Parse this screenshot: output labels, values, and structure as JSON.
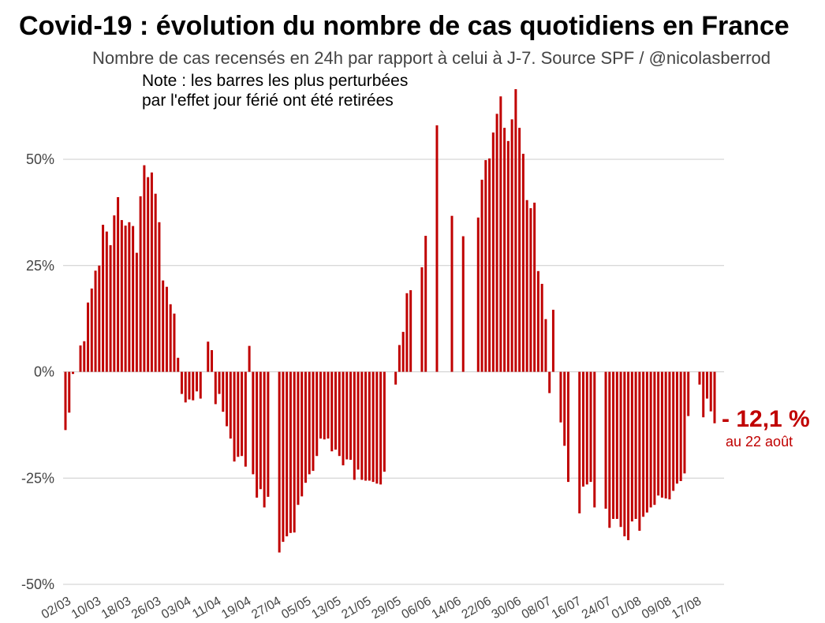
{
  "chart_data": {
    "type": "bar",
    "title": "Covid-19 : évolution du nombre de cas quotidiens en France",
    "subtitle": "Nombre de cas recensés en 24h par rapport à celui à J-7. Source SPF / @nicolasberrod",
    "note": [
      "Note : les barres les plus perturbées",
      "par l'effet jour férié ont été retirées"
    ],
    "ylim": [
      -50,
      70
    ],
    "grid": true,
    "y_ticks": [
      {
        "value": 50,
        "label": "50%"
      },
      {
        "value": 25,
        "label": "25%"
      },
      {
        "value": 0,
        "label": "0%"
      },
      {
        "value": -25,
        "label": "-25%"
      },
      {
        "value": -50,
        "label": "-50%"
      }
    ],
    "x_ticks": [
      {
        "day": 0,
        "label": "02/03"
      },
      {
        "day": 8,
        "label": "10/03"
      },
      {
        "day": 16,
        "label": "18/03"
      },
      {
        "day": 24,
        "label": "26/03"
      },
      {
        "day": 32,
        "label": "03/04"
      },
      {
        "day": 40,
        "label": "11/04"
      },
      {
        "day": 48,
        "label": "19/04"
      },
      {
        "day": 56,
        "label": "27/04"
      },
      {
        "day": 64,
        "label": "05/05"
      },
      {
        "day": 72,
        "label": "13/05"
      },
      {
        "day": 80,
        "label": "21/05"
      },
      {
        "day": 88,
        "label": "29/05"
      },
      {
        "day": 96,
        "label": "06/06"
      },
      {
        "day": 104,
        "label": "14/06"
      },
      {
        "day": 112,
        "label": "22/06"
      },
      {
        "day": 120,
        "label": "30/06"
      },
      {
        "day": 128,
        "label": "08/07"
      },
      {
        "day": 136,
        "label": "16/07"
      },
      {
        "day": 144,
        "label": "24/07"
      },
      {
        "day": 152,
        "label": "01/08"
      },
      {
        "day": 160,
        "label": "09/08"
      },
      {
        "day": 168,
        "label": "17/08"
      }
    ],
    "values": [
      -13.7,
      -9.6,
      -0.5,
      null,
      6.2,
      7.2,
      16.3,
      19.6,
      23.8,
      25.0,
      34.6,
      33.0,
      29.8,
      36.8,
      41.1,
      35.7,
      34.4,
      35.2,
      34.3,
      28.0,
      41.3,
      48.6,
      45.8,
      46.9,
      41.9,
      35.2,
      21.5,
      20.0,
      15.9,
      13.7,
      3.3,
      -5.2,
      -7.2,
      -6.5,
      -6.7,
      -4.6,
      -6.3,
      null,
      7.1,
      5.1,
      -7.6,
      -5.2,
      -9.4,
      -12.8,
      -15.7,
      -21.1,
      -20.0,
      -19.8,
      -22.3,
      6.1,
      -24.1,
      -29.6,
      -27.6,
      -31.9,
      -29.4,
      null,
      null,
      -42.5,
      -40.0,
      -38.7,
      -37.9,
      -37.8,
      -31.3,
      -29.3,
      -26.1,
      -24.1,
      -23.3,
      -19.8,
      -15.7,
      -15.9,
      -15.7,
      -18.7,
      -18.3,
      -19.8,
      -22.0,
      -20.6,
      -20.7,
      -25.4,
      -23.0,
      -25.4,
      -25.6,
      -25.6,
      -25.9,
      -26.3,
      -26.5,
      -23.5,
      null,
      null,
      -3.0,
      6.3,
      9.4,
      18.5,
      19.2,
      null,
      null,
      24.6,
      32.0,
      null,
      null,
      58.0,
      null,
      null,
      null,
      36.7,
      null,
      null,
      31.9,
      null,
      null,
      null,
      36.3,
      45.2,
      49.8,
      50.2,
      56.3,
      60.7,
      64.8,
      57.4,
      54.3,
      59.4,
      66.5,
      57.4,
      51.3,
      40.4,
      38.5,
      39.8,
      23.7,
      20.7,
      12.4,
      -5.0,
      14.6,
      null,
      -11.9,
      -17.4,
      -25.9,
      null,
      null,
      -33.3,
      -27.0,
      -26.5,
      -25.9,
      -31.9,
      null,
      null,
      -32.2,
      -36.7,
      -34.6,
      -34.6,
      -36.5,
      -38.7,
      -39.6,
      -35.2,
      -34.6,
      -37.4,
      -34.1,
      -33.1,
      -31.9,
      -31.3,
      -29.1,
      -29.6,
      -29.8,
      -30.0,
      -28.0,
      -26.3,
      -25.7,
      -23.9,
      -10.4,
      null,
      null,
      -3.0,
      -10.7,
      -6.3,
      -9.3,
      -12.1
    ],
    "annotation": {
      "value": "- 12,1 %",
      "caption": "au 22 août"
    }
  },
  "colors": {
    "bar": "#c00000",
    "grid": "#cccccc"
  }
}
